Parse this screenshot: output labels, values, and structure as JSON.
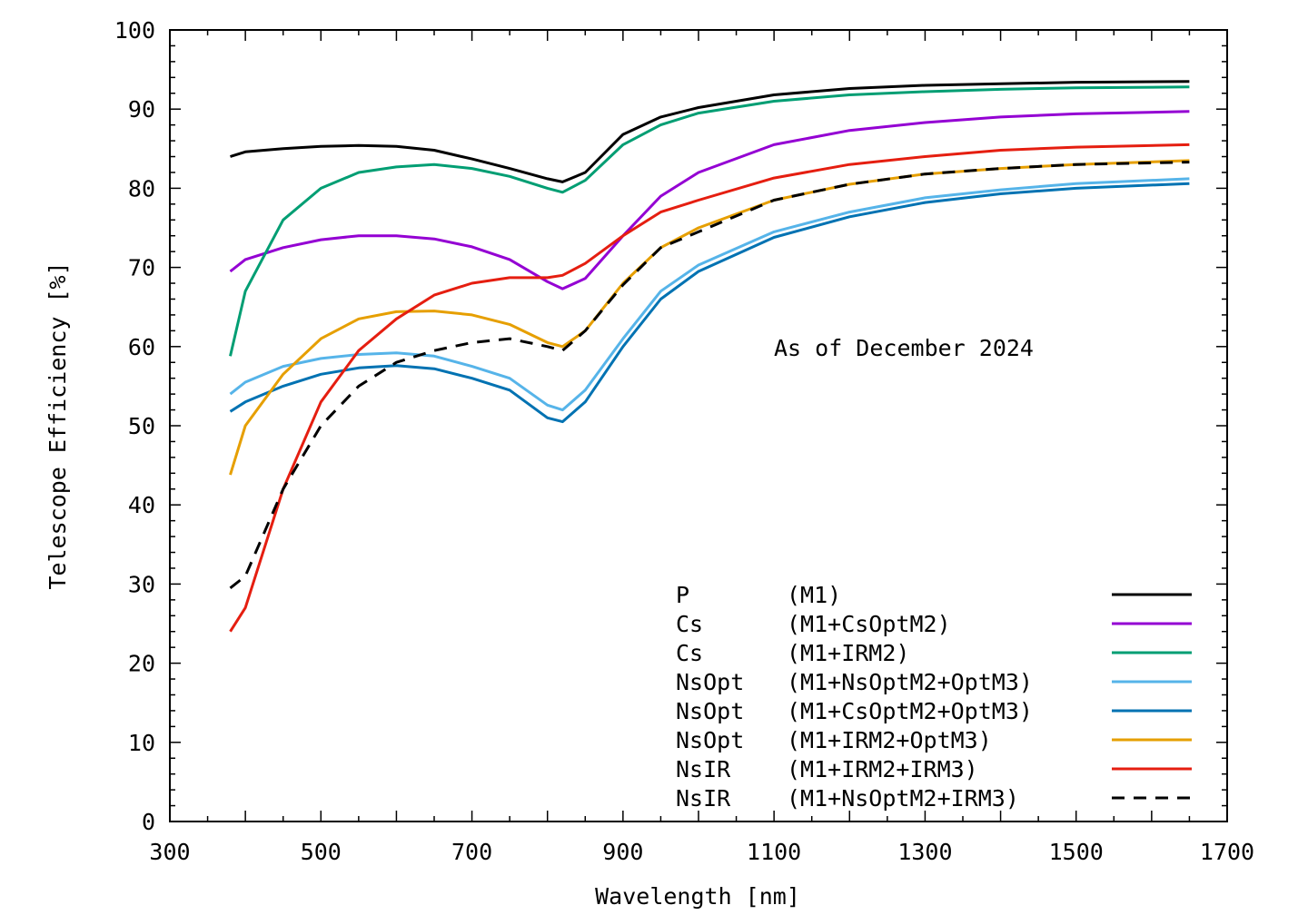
{
  "chart_data": {
    "type": "line",
    "title": "",
    "xlabel": "Wavelength [nm]",
    "ylabel": "Telescope Efficiency [%]",
    "xlim": [
      300,
      1700
    ],
    "ylim": [
      0,
      100
    ],
    "xticks": [
      300,
      500,
      700,
      900,
      1100,
      1300,
      1500,
      1700
    ],
    "yticks": [
      0,
      10,
      20,
      30,
      40,
      50,
      60,
      70,
      80,
      90,
      100
    ],
    "grid": false,
    "legend_position": "bottom-right",
    "annotation": "As of December 2024",
    "x": [
      380,
      400,
      450,
      500,
      550,
      600,
      650,
      700,
      750,
      800,
      820,
      850,
      900,
      950,
      1000,
      1100,
      1200,
      1300,
      1400,
      1500,
      1650
    ],
    "series": [
      {
        "name": "P",
        "desc": "(M1)",
        "color": "#000000",
        "dash": false,
        "values": [
          84,
          84.6,
          85,
          85.3,
          85.4,
          85.3,
          84.8,
          83.7,
          82.5,
          81.2,
          80.8,
          82,
          86.8,
          89,
          90.2,
          91.8,
          92.6,
          93,
          93.2,
          93.4,
          93.5
        ]
      },
      {
        "name": "Cs",
        "desc": "(M1+CsOptM2)",
        "color": "#9400d3",
        "dash": false,
        "values": [
          69.5,
          71,
          72.5,
          73.5,
          74,
          74,
          73.6,
          72.6,
          71,
          68.2,
          67.3,
          68.6,
          74,
          79,
          82,
          85.5,
          87.3,
          88.3,
          89,
          89.4,
          89.7
        ]
      },
      {
        "name": "Cs",
        "desc": "(M1+IRM2)",
        "color": "#009e73",
        "dash": false,
        "values": [
          58.8,
          67,
          76,
          80,
          82,
          82.7,
          83,
          82.5,
          81.5,
          80,
          79.5,
          81,
          85.5,
          88,
          89.5,
          91,
          91.8,
          92.2,
          92.5,
          92.7,
          92.8
        ]
      },
      {
        "name": "NsOpt",
        "desc": "(M1+NsOptM2+OptM3)",
        "color": "#56b4e9",
        "dash": false,
        "values": [
          54,
          55.5,
          57.5,
          58.5,
          59,
          59.2,
          58.8,
          57.5,
          56,
          52.6,
          52,
          54.5,
          61,
          67,
          70.3,
          74.5,
          77,
          78.8,
          79.8,
          80.6,
          81.2
        ]
      },
      {
        "name": "NsOpt",
        "desc": "(M1+CsOptM2+OptM3)",
        "color": "#0072b2",
        "dash": false,
        "values": [
          51.8,
          53,
          55,
          56.5,
          57.3,
          57.6,
          57.2,
          56,
          54.5,
          51,
          50.5,
          53,
          60,
          66,
          69.5,
          73.8,
          76.4,
          78.2,
          79.3,
          80,
          80.6
        ]
      },
      {
        "name": "NsOpt",
        "desc": "(M1+IRM2+OptM3)",
        "color": "#e69f00",
        "dash": false,
        "values": [
          43.8,
          50,
          56.5,
          61,
          63.5,
          64.4,
          64.5,
          64,
          62.8,
          60.5,
          60,
          62,
          68,
          72.5,
          75,
          78.5,
          80.5,
          81.8,
          82.5,
          83,
          83.5
        ]
      },
      {
        "name": "NsIR",
        "desc": "(M1+IRM2+IRM3)",
        "color": "#e51e10",
        "dash": false,
        "values": [
          24,
          27,
          42,
          53,
          59.5,
          63.5,
          66.5,
          68,
          68.7,
          68.7,
          69,
          70.5,
          74,
          77,
          78.5,
          81.3,
          83,
          84,
          84.8,
          85.2,
          85.5
        ]
      },
      {
        "name": "NsIR",
        "desc": "(M1+NsOptM2+IRM3)",
        "color": "#000000",
        "dash": true,
        "values": [
          29.5,
          31,
          42,
          50,
          55,
          58,
          59.5,
          60.5,
          61,
          60,
          59.5,
          62,
          67.8,
          72.5,
          74.5,
          78.5,
          80.5,
          81.8,
          82.5,
          83,
          83.3
        ]
      }
    ]
  }
}
